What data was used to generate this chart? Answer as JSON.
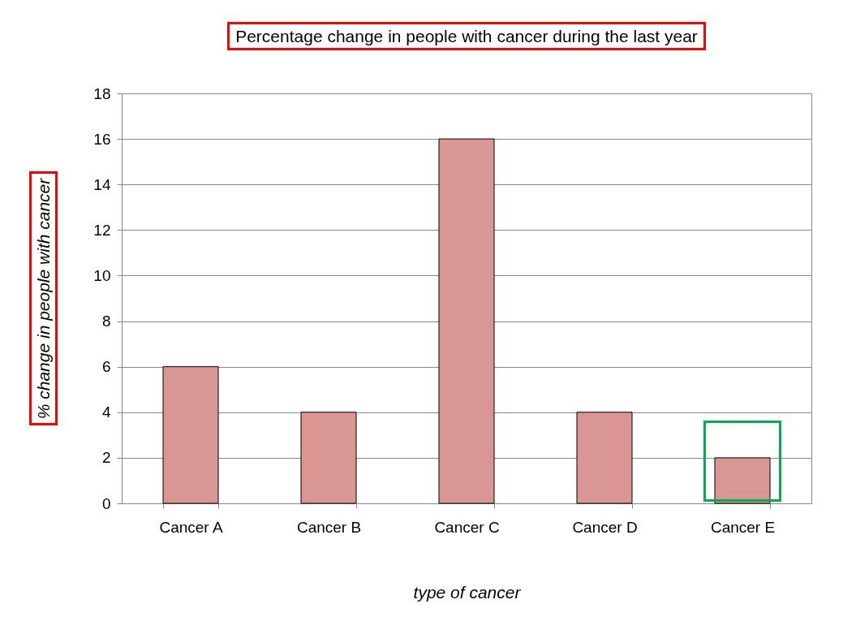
{
  "chart_data": {
    "type": "bar",
    "title": "Percentage change in people with cancer during the last year",
    "xlabel": "type of cancer",
    "ylabel": "% change in people with cancer",
    "categories": [
      "Cancer A",
      "Cancer B",
      "Cancer C",
      "Cancer D",
      "Cancer E"
    ],
    "values": [
      6,
      4,
      16,
      4,
      2
    ],
    "color": "#d99694",
    "ylim": [
      0,
      18
    ],
    "yticks": [
      0,
      2,
      4,
      6,
      8,
      10,
      12,
      14,
      16,
      18
    ],
    "grid": "y"
  }
}
